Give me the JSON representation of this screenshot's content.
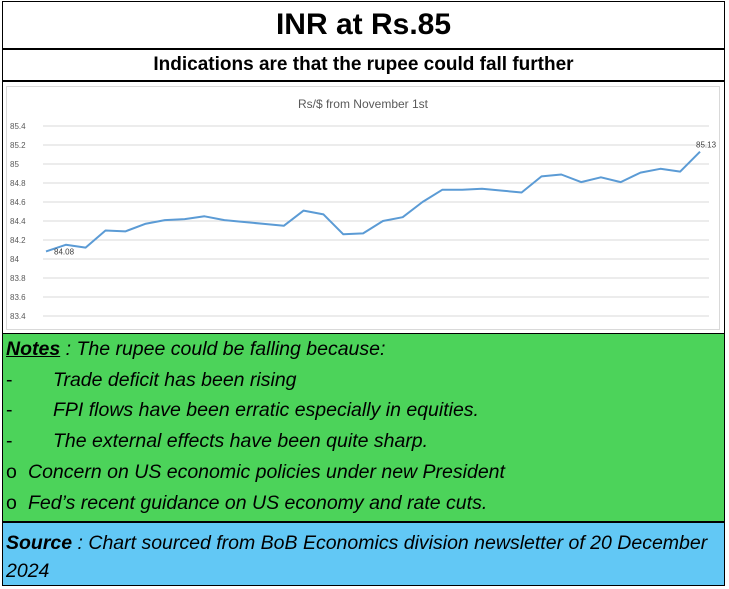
{
  "header": {
    "title": "INR at Rs.85",
    "subtitle": "Indications are that the rupee could fall further"
  },
  "chart_data": {
    "type": "line",
    "title": "Rs/$ from November 1st",
    "xlabel": "",
    "ylabel": "",
    "ylim": [
      83.4,
      85.4
    ],
    "yticks": [
      "85.4",
      "85.2",
      "85",
      "84.8",
      "84.6",
      "84.4",
      "84.2",
      "84",
      "83.8",
      "83.6",
      "83.4"
    ],
    "grid": true,
    "series_color": "#5b9bd5",
    "series": [
      {
        "values": [
          84.08,
          84.15,
          84.12,
          84.3,
          84.29,
          84.37,
          84.41,
          84.42,
          84.45,
          84.41,
          84.39,
          84.37,
          84.35,
          84.51,
          84.47,
          84.26,
          84.27,
          84.4,
          84.44,
          84.6,
          84.73,
          84.73,
          84.74,
          84.72,
          84.7,
          84.87,
          84.89,
          84.81,
          84.86,
          84.81,
          84.91,
          84.95,
          84.92,
          85.13
        ]
      }
    ],
    "data_labels": [
      {
        "index": 0,
        "text": "84.08"
      },
      {
        "index": 33,
        "text": "85.13"
      }
    ]
  },
  "notes": {
    "heading": "Notes",
    "intro": " : The rupee could be falling because:",
    "dash_items": [
      "Trade deficit has been rising",
      "FPI flows have been erratic especially in equities.",
      "The external effects have been quite sharp."
    ],
    "dash_marker": "-",
    "sub_marker": "o",
    "sub_items": [
      "Concern on US economic policies under new President",
      "Fed’s recent guidance on US economy and rate cuts."
    ]
  },
  "source": {
    "heading": "Source",
    "text": " : Chart sourced from BoB Economics division newsletter of 20 December 2024"
  },
  "colors": {
    "notes_bg": "#4cd35a",
    "source_bg": "#62c8f5"
  }
}
